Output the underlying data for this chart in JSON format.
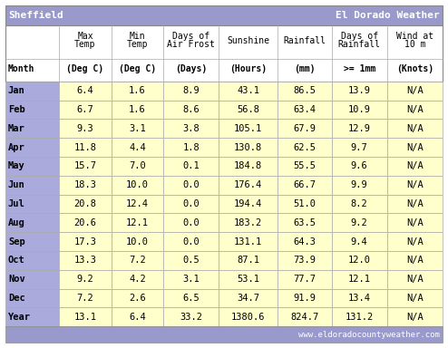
{
  "title_left": "Sheffield",
  "title_right": "El Dorado Weather",
  "footer": "www.eldoradocountyweather.com",
  "col_headers_line1": [
    "",
    "Max\nTemp",
    "Min\nTemp",
    "Days of\nAir Frost",
    "Sunshine",
    "Rainfall",
    "Days of\nRainfall",
    "Wind at\n10 m"
  ],
  "col_headers_line2": [
    "Month",
    "(Deg C)",
    "(Deg C)",
    "(Days)",
    "(Hours)",
    "(mm)",
    ">= 1mm",
    "(Knots)"
  ],
  "rows": [
    [
      "Jan",
      "6.4",
      "1.6",
      "8.9",
      "43.1",
      "86.5",
      "13.9",
      "N/A"
    ],
    [
      "Feb",
      "6.7",
      "1.6",
      "8.6",
      "56.8",
      "63.4",
      "10.9",
      "N/A"
    ],
    [
      "Mar",
      "9.3",
      "3.1",
      "3.8",
      "105.1",
      "67.9",
      "12.9",
      "N/A"
    ],
    [
      "Apr",
      "11.8",
      "4.4",
      "1.8",
      "130.8",
      "62.5",
      "9.7",
      "N/A"
    ],
    [
      "May",
      "15.7",
      "7.0",
      "0.1",
      "184.8",
      "55.5",
      "9.6",
      "N/A"
    ],
    [
      "Jun",
      "18.3",
      "10.0",
      "0.0",
      "176.4",
      "66.7",
      "9.9",
      "N/A"
    ],
    [
      "Jul",
      "20.8",
      "12.4",
      "0.0",
      "194.4",
      "51.0",
      "8.2",
      "N/A"
    ],
    [
      "Aug",
      "20.6",
      "12.1",
      "0.0",
      "183.2",
      "63.5",
      "9.2",
      "N/A"
    ],
    [
      "Sep",
      "17.3",
      "10.0",
      "0.0",
      "131.1",
      "64.3",
      "9.4",
      "N/A"
    ],
    [
      "Oct",
      "13.3",
      "7.2",
      "0.5",
      "87.1",
      "73.9",
      "12.0",
      "N/A"
    ],
    [
      "Nov",
      "9.2",
      "4.2",
      "3.1",
      "53.1",
      "77.7",
      "12.1",
      "N/A"
    ],
    [
      "Dec",
      "7.2",
      "2.6",
      "6.5",
      "34.7",
      "91.9",
      "13.4",
      "N/A"
    ],
    [
      "Year",
      "13.1",
      "6.4",
      "33.2",
      "1380.6",
      "824.7",
      "131.2",
      "N/A"
    ]
  ],
  "header_bg": "#9999cc",
  "header_text": "#ffffff",
  "col_header_bg": "#ffffff",
  "col_header_text": "#000000",
  "month_col_bg": "#aaaadd",
  "month_col_text": "#000000",
  "data_col_bg": "#ffffcc",
  "data_col_text": "#000000",
  "title_fontsize": 8,
  "header_fontsize": 7,
  "data_fontsize": 7.5
}
